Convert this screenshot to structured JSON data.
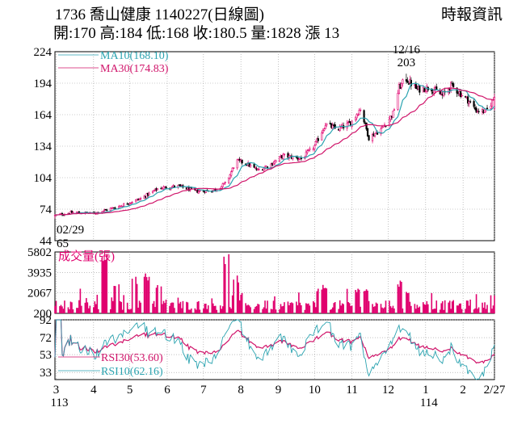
{
  "header": {
    "title": "1736  喬山健康 1140227(日線圖)",
    "source": "時報資訊",
    "ohlc": "開:170 高:184 低:168 收:180.5 量:1828 漲 13"
  },
  "colors": {
    "up": "#e0006e",
    "down": "#000000",
    "ma10": "#2aa3b0",
    "ma30": "#d0146a",
    "volume": "#e0006e",
    "rsi30": "#d0146a",
    "rsi10": "#2aa3b0",
    "grid": "#9a9a9a"
  },
  "chart_data": [
    {
      "type": "candlestick",
      "panel": "price",
      "yticks": [
        44,
        74,
        104,
        134,
        164,
        194,
        224
      ],
      "ylim": [
        44,
        224
      ],
      "series": [
        {
          "name": "MA10",
          "label": "MA10(168.10)",
          "last": 168.1
        },
        {
          "name": "MA30",
          "label": "MA30(174.83)",
          "last": 174.83
        }
      ],
      "annotations": [
        {
          "text": "12/16",
          "date": "2024-12-16"
        },
        {
          "text": "203",
          "value": 203
        },
        {
          "text": "02/29",
          "date": "2024-02-29"
        },
        {
          "text": "65",
          "value": 65
        }
      ],
      "anchors": [
        {
          "date": "2024-02-29",
          "value": 68
        },
        {
          "date": "2024-03-15",
          "value": 71
        },
        {
          "date": "2024-04-01",
          "value": 70
        },
        {
          "date": "2024-04-20",
          "value": 76
        },
        {
          "date": "2024-05-10",
          "value": 84
        },
        {
          "date": "2024-05-25",
          "value": 94
        },
        {
          "date": "2024-06-10",
          "value": 96
        },
        {
          "date": "2024-06-25",
          "value": 91
        },
        {
          "date": "2024-07-10",
          "value": 92
        },
        {
          "date": "2024-07-20",
          "value": 99
        },
        {
          "date": "2024-07-28",
          "value": 120
        },
        {
          "date": "2024-08-05",
          "value": 118
        },
        {
          "date": "2024-08-15",
          "value": 111
        },
        {
          "date": "2024-08-25",
          "value": 116
        },
        {
          "date": "2024-09-05",
          "value": 125
        },
        {
          "date": "2024-09-20",
          "value": 122
        },
        {
          "date": "2024-10-01",
          "value": 134
        },
        {
          "date": "2024-10-10",
          "value": 155
        },
        {
          "date": "2024-10-20",
          "value": 150
        },
        {
          "date": "2024-10-31",
          "value": 156
        },
        {
          "date": "2024-11-08",
          "value": 170
        },
        {
          "date": "2024-11-15",
          "value": 142
        },
        {
          "date": "2024-11-25",
          "value": 150
        },
        {
          "date": "2024-12-05",
          "value": 165
        },
        {
          "date": "2024-12-10",
          "value": 190
        },
        {
          "date": "2024-12-16",
          "value": 198
        },
        {
          "date": "2024-12-25",
          "value": 188
        },
        {
          "date": "2025-01-05",
          "value": 190
        },
        {
          "date": "2025-01-15",
          "value": 182
        },
        {
          "date": "2025-01-22",
          "value": 192
        },
        {
          "date": "2025-02-05",
          "value": 178
        },
        {
          "date": "2025-02-12",
          "value": 168
        },
        {
          "date": "2025-02-20",
          "value": 167
        },
        {
          "date": "2025-02-27",
          "value": 180.5
        }
      ],
      "last_candle": {
        "date": "2025-02-27",
        "open": 170,
        "high": 184,
        "low": 168,
        "close": 180.5
      }
    },
    {
      "type": "bar",
      "panel": "volume",
      "title": "成交量(張)",
      "yticks": [
        200,
        2067,
        3935,
        5802
      ],
      "ylim": [
        200,
        5802
      ],
      "last": 1828,
      "spikes": [
        {
          "date": "2024-04-10",
          "value": 5700
        },
        {
          "date": "2024-04-12",
          "value": 4100
        },
        {
          "date": "2024-04-20",
          "value": 3300
        },
        {
          "date": "2024-05-05",
          "value": 3600
        },
        {
          "date": "2024-05-15",
          "value": 3900
        },
        {
          "date": "2024-05-25",
          "value": 3000
        },
        {
          "date": "2024-07-20",
          "value": 5802
        },
        {
          "date": "2024-07-28",
          "value": 3700
        },
        {
          "date": "2024-10-05",
          "value": 2500
        },
        {
          "date": "2024-10-10",
          "value": 2900
        },
        {
          "date": "2024-11-05",
          "value": 2500
        },
        {
          "date": "2024-11-12",
          "value": 2600
        },
        {
          "date": "2024-12-10",
          "value": 3200
        },
        {
          "date": "2024-12-16",
          "value": 2500
        }
      ]
    },
    {
      "type": "line",
      "panel": "rsi",
      "yticks": [
        33,
        53,
        72,
        92
      ],
      "ylim": [
        25,
        92
      ],
      "series": [
        {
          "name": "RSI30",
          "label": "RSI30(53.60)",
          "last": 53.6
        },
        {
          "name": "RSI10",
          "label": "RSI10(62.16)",
          "last": 62.16
        }
      ]
    }
  ],
  "xaxis": {
    "ticks": [
      {
        "label": "3",
        "date": "2024-03-01"
      },
      {
        "label": "4",
        "date": "2024-04-01"
      },
      {
        "label": "5",
        "date": "2024-05-01"
      },
      {
        "label": "6",
        "date": "2024-06-01"
      },
      {
        "label": "7",
        "date": "2024-07-01"
      },
      {
        "label": "8",
        "date": "2024-08-01"
      },
      {
        "label": "9",
        "date": "2024-09-01"
      },
      {
        "label": "10",
        "date": "2024-10-01"
      },
      {
        "label": "11",
        "date": "2024-11-01"
      },
      {
        "label": "12",
        "date": "2024-12-01"
      },
      {
        "label": "1",
        "date": "2025-01-01"
      },
      {
        "label": "2",
        "date": "2025-02-01"
      },
      {
        "label": "2/27",
        "date": "2025-02-27"
      }
    ],
    "year_labels": [
      {
        "label": "113",
        "date": "2024-03-01"
      },
      {
        "label": "114",
        "date": "2025-01-01"
      }
    ]
  }
}
